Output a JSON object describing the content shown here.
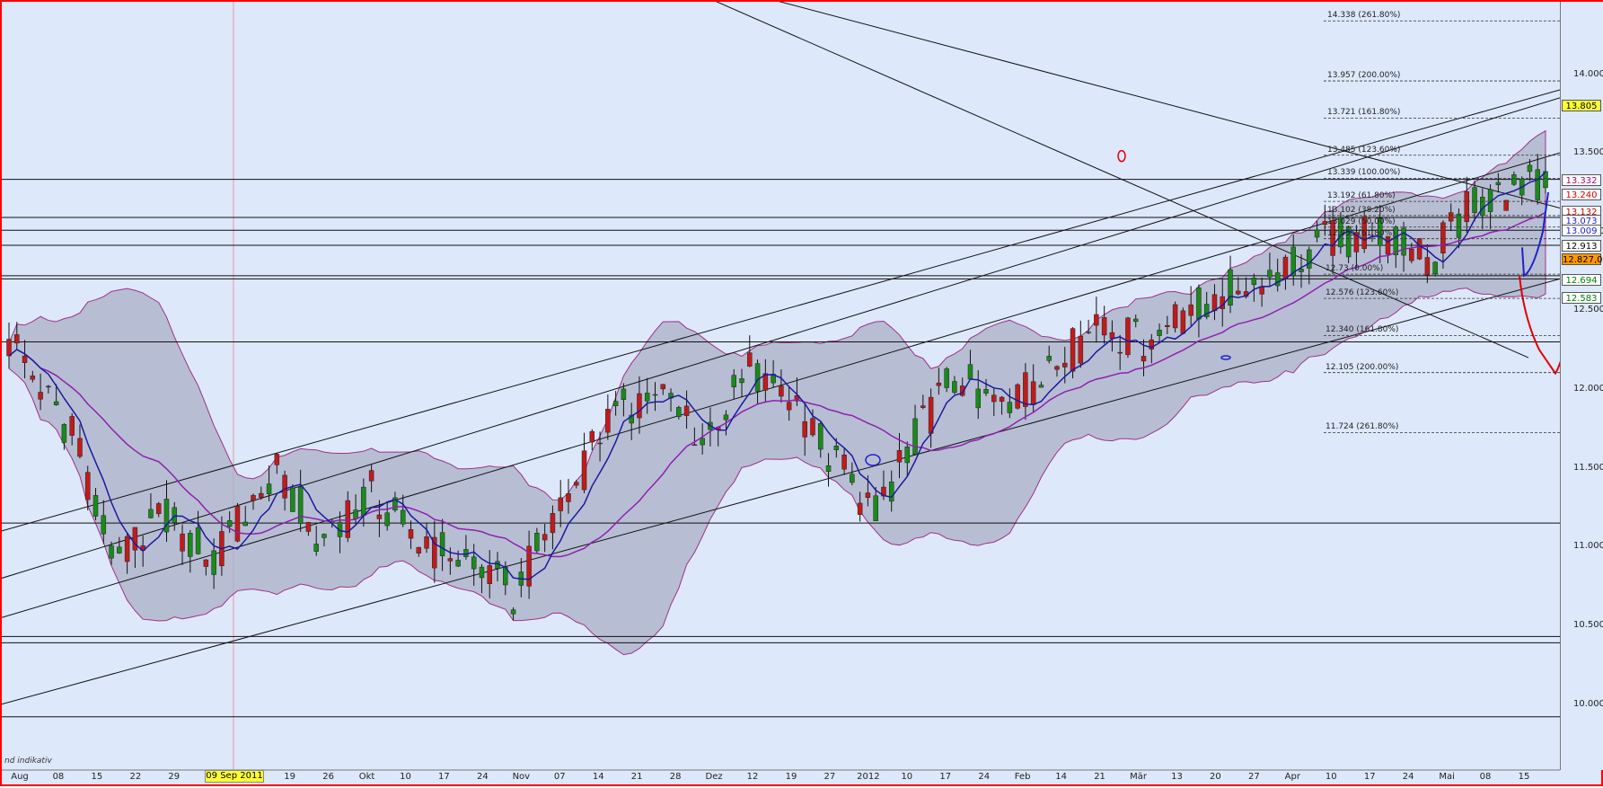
{
  "chart_data": {
    "type": "candlestick",
    "y_axis": {
      "ticks": [
        10.0,
        10.5,
        11.0,
        11.5,
        12.0,
        12.5,
        13.0,
        13.5,
        14.0
      ],
      "tick_labels": [
        "10.000",
        "10.500",
        "11.000",
        "11.500",
        "12.000",
        "12.500",
        "13.000",
        "13.500",
        "14.000"
      ],
      "range": [
        9.45,
        14.45
      ]
    },
    "x_axis": {
      "labels": [
        "Aug",
        "08",
        "15",
        "22",
        "29",
        "Sep",
        "12",
        "19",
        "26",
        "Okt",
        "10",
        "17",
        "24",
        "Nov",
        "07",
        "14",
        "21",
        "28",
        "Dez",
        "12",
        "19",
        "27",
        "2012",
        "10",
        "17",
        "24",
        "Feb",
        "14",
        "21",
        "Mär",
        "13",
        "20",
        "27",
        "Apr",
        "10",
        "17",
        "24",
        "Mai",
        "08",
        "15"
      ],
      "marker_date": "09 Sep 2011"
    },
    "price_badges": [
      {
        "value": 13.805,
        "label": "13.805",
        "bg": "#ffff33",
        "fg": "#000000"
      },
      {
        "value": 13.332,
        "label": "13.332",
        "bg": "#ffffff",
        "fg": "#b00080"
      },
      {
        "value": 13.24,
        "label": "13.240",
        "bg": "#ffffff",
        "fg": "#d00000"
      },
      {
        "value": 13.132,
        "label": "13.132",
        "bg": "#ffffff",
        "fg": "#d00000"
      },
      {
        "value": 13.073,
        "label": "13.073",
        "bg": "#ffffff",
        "fg": "#2020d0"
      },
      {
        "value": 13.009,
        "label": "13.009",
        "bg": "#ffffff",
        "fg": "#2020d0"
      },
      {
        "value": 12.913,
        "label": "12.913",
        "bg": "#ffffff",
        "fg": "#000000"
      },
      {
        "value": 12.827,
        "label": "12.827,0",
        "bg": "#ff9900",
        "fg": "#000000"
      },
      {
        "value": 12.694,
        "label": "12.694",
        "bg": "#ffffff",
        "fg": "#008000"
      },
      {
        "value": 12.583,
        "label": "12.583",
        "bg": "#ffffff",
        "fg": "#008000"
      }
    ],
    "fib_levels": [
      {
        "value": 14.338,
        "label": "14.338 (261.80%)"
      },
      {
        "value": 13.957,
        "label": "13.957 (200.00%)"
      },
      {
        "value": 13.721,
        "label": "13.721 (161.80%)"
      },
      {
        "value": 13.485,
        "label": "13.485 (123.60%)"
      },
      {
        "value": 13.339,
        "label": "13.339 (100.00%)"
      },
      {
        "value": 13.192,
        "label": "13.192 (61.80%)"
      },
      {
        "value": 13.102,
        "label": "13.102 (38.20%)"
      },
      {
        "value": 13.029,
        "label": "13.029 (50.00%)"
      },
      {
        "value": 12.955,
        "label": "12.955 (61.80%)"
      },
      {
        "value": 12.73,
        "label": "12.73 (0.00%)"
      },
      {
        "value": 12.576,
        "label": "12.576 (123.60%)"
      },
      {
        "value": 12.34,
        "label": "12.340 (161.80%)"
      },
      {
        "value": 12.105,
        "label": "12.105 (200.00%)"
      },
      {
        "value": 11.724,
        "label": "11.724 (261.80%)"
      }
    ],
    "horizontal_lines": [
      13.332,
      13.09,
      13.009,
      12.913,
      12.72,
      12.7,
      12.3,
      11.15,
      10.43,
      10.39,
      9.92
    ],
    "footnote": "nd indikativ",
    "colors": {
      "up": "#1a8a1a",
      "down": "#c21a1a",
      "band": "#a9b0c6",
      "band_edge": "#a0308a",
      "ma_fast": "#1a1aa0",
      "ma_slow": "#9020b0",
      "background": "#dde8fb"
    }
  }
}
